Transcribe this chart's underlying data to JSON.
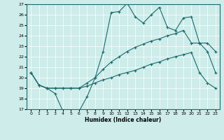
{
  "xlabel": "Humidex (Indice chaleur)",
  "xlim": [
    -0.5,
    23.5
  ],
  "ylim": [
    17,
    27
  ],
  "yticks": [
    17,
    18,
    19,
    20,
    21,
    22,
    23,
    24,
    25,
    26,
    27
  ],
  "xticks": [
    0,
    1,
    2,
    3,
    4,
    5,
    6,
    7,
    8,
    9,
    10,
    11,
    12,
    13,
    14,
    15,
    16,
    17,
    18,
    19,
    20,
    21,
    22,
    23
  ],
  "bg_color": "#cdecea",
  "line_color": "#1a6b6b",
  "line1_x": [
    0,
    1,
    2,
    3,
    4,
    5,
    6,
    7,
    8,
    9,
    10,
    11,
    12,
    13,
    14,
    15,
    16,
    17,
    18,
    19,
    20,
    21,
    22,
    23
  ],
  "line1_y": [
    20.5,
    19.3,
    19.0,
    18.5,
    16.8,
    16.8,
    16.8,
    18.2,
    20.0,
    22.5,
    26.2,
    26.3,
    27.1,
    25.8,
    25.2,
    26.0,
    26.7,
    24.8,
    24.5,
    25.7,
    25.8,
    23.3,
    23.3,
    22.5
  ],
  "line2_x": [
    0,
    1,
    2,
    3,
    4,
    5,
    6,
    7,
    8,
    9,
    10,
    11,
    12,
    13,
    14,
    15,
    16,
    17,
    18,
    19,
    20,
    21,
    22,
    23
  ],
  "line2_y": [
    20.5,
    19.3,
    19.0,
    19.0,
    19.0,
    19.0,
    19.0,
    19.5,
    20.0,
    20.8,
    21.5,
    22.0,
    22.5,
    22.9,
    23.2,
    23.5,
    23.7,
    24.0,
    24.2,
    24.5,
    23.3,
    23.3,
    22.5,
    20.5
  ],
  "line3_x": [
    0,
    1,
    2,
    3,
    4,
    5,
    6,
    7,
    8,
    9,
    10,
    11,
    12,
    13,
    14,
    15,
    16,
    17,
    18,
    19,
    20,
    21,
    22,
    23
  ],
  "line3_y": [
    20.5,
    19.3,
    19.0,
    19.0,
    19.0,
    19.0,
    19.0,
    19.2,
    19.5,
    19.8,
    20.0,
    20.3,
    20.5,
    20.7,
    21.0,
    21.3,
    21.5,
    21.8,
    22.0,
    22.2,
    22.4,
    20.5,
    19.5,
    19.0
  ]
}
